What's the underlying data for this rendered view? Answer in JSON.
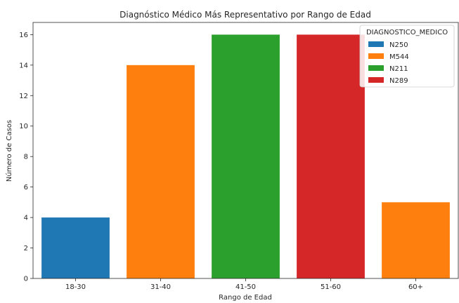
{
  "chart_data": {
    "type": "bar",
    "title": "Diagnóstico Médico Más Representativo por Rango de Edad",
    "xlabel": "Rango de Edad",
    "ylabel": "Número de Casos",
    "categories": [
      "18-30",
      "31-40",
      "41-50",
      "51-60",
      "60+"
    ],
    "values": [
      4,
      14,
      16,
      16,
      5
    ],
    "bar_series": [
      "N250",
      "M544",
      "N211",
      "N289",
      "M544"
    ],
    "ylim": [
      0,
      16.8
    ],
    "yticks": [
      0,
      2,
      4,
      6,
      8,
      10,
      12,
      14,
      16
    ],
    "grid": false,
    "legend": {
      "title": "DIAGNOSTICO_MEDICO",
      "placement": "top-right",
      "entries": [
        {
          "name": "N250",
          "color": "#1f77b4"
        },
        {
          "name": "M544",
          "color": "#ff7f0e"
        },
        {
          "name": "N211",
          "color": "#2ca02c"
        },
        {
          "name": "N289",
          "color": "#d62728"
        }
      ]
    }
  }
}
